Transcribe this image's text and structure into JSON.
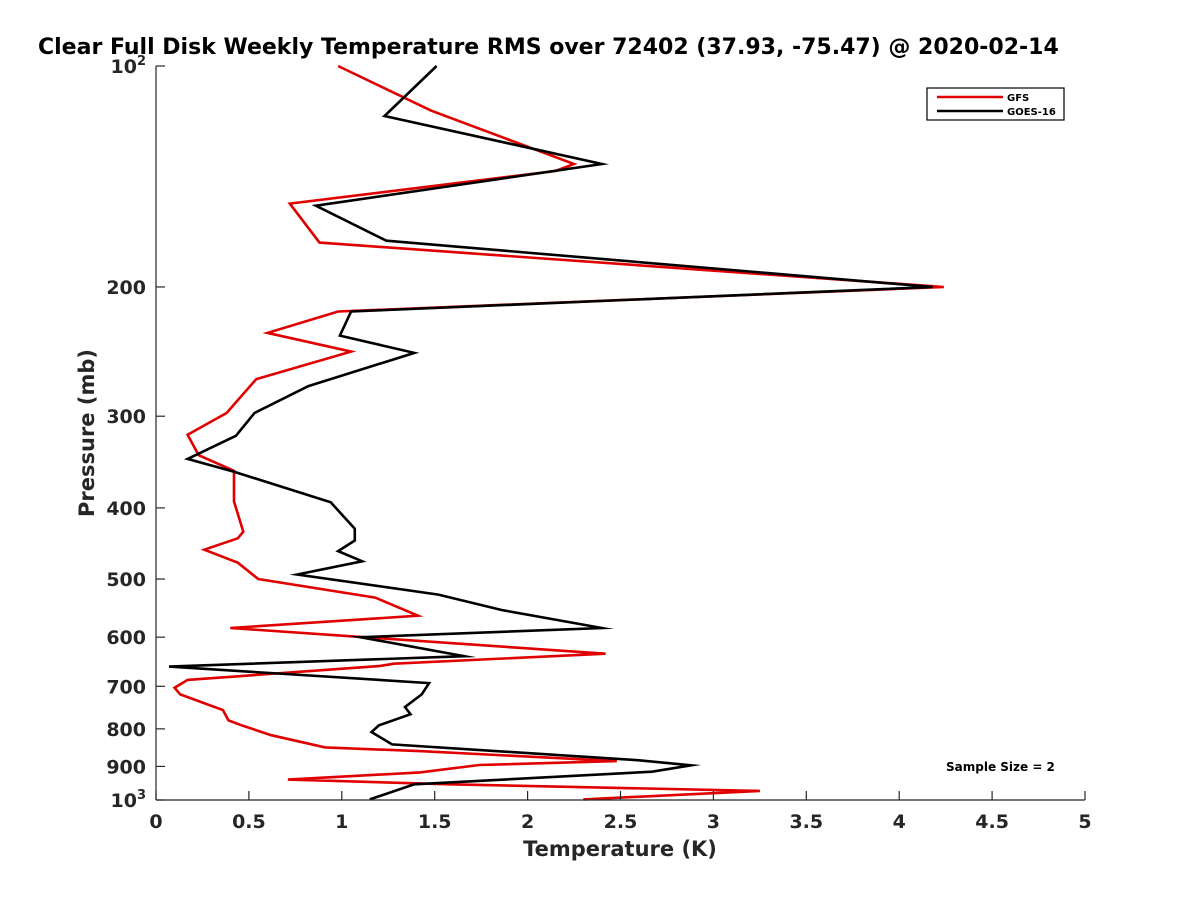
{
  "chart_data": {
    "type": "line",
    "title": "Clear Full Disk Weekly Temperature RMS over 72402 (37.93, -75.47) @ 2020-02-14",
    "xlabel": "Temperature (K)",
    "ylabel": "Pressure (mb)",
    "xlim": [
      0,
      5
    ],
    "ylim": [
      100,
      1000
    ],
    "yscale": "log",
    "y_reversed": true,
    "x_ticks": [
      "0",
      "0.5",
      "1",
      "1.5",
      "2",
      "2.5",
      "3",
      "3.5",
      "4",
      "4.5",
      "5"
    ],
    "x_tick_values": [
      0,
      0.5,
      1,
      1.5,
      2,
      2.5,
      3,
      3.5,
      4,
      4.5,
      5
    ],
    "y_ticks": [
      {
        "value": 100,
        "base": "10",
        "exp": "2"
      },
      {
        "value": 200,
        "label": "200"
      },
      {
        "value": 300,
        "label": "300"
      },
      {
        "value": 400,
        "label": "400"
      },
      {
        "value": 500,
        "label": "500"
      },
      {
        "value": 600,
        "label": "600"
      },
      {
        "value": 700,
        "label": "700"
      },
      {
        "value": 800,
        "label": "800"
      },
      {
        "value": 900,
        "label": "900"
      },
      {
        "value": 1000,
        "base": "10",
        "exp": "3"
      }
    ],
    "legend_position": "top-right",
    "annotation": "Sample Size = 2",
    "series": [
      {
        "name": "GFS",
        "color": "#e00000",
        "points": [
          [
            0.98,
            100
          ],
          [
            1.48,
            115
          ],
          [
            2.25,
            136
          ],
          [
            2.15,
            139
          ],
          [
            0.72,
            154
          ],
          [
            0.88,
            174
          ],
          [
            4.24,
            200
          ],
          [
            0.98,
            216
          ],
          [
            0.6,
            231
          ],
          [
            1.05,
            245
          ],
          [
            0.54,
            267
          ],
          [
            0.38,
            297
          ],
          [
            0.17,
            318
          ],
          [
            0.23,
            339
          ],
          [
            0.42,
            356
          ],
          [
            0.42,
            392
          ],
          [
            0.47,
            431
          ],
          [
            0.44,
            440
          ],
          [
            0.26,
            456
          ],
          [
            0.44,
            475
          ],
          [
            0.55,
            500
          ],
          [
            1.18,
            530
          ],
          [
            1.41,
            561
          ],
          [
            0.4,
            583
          ],
          [
            2.42,
            632
          ],
          [
            1.28,
            652
          ],
          [
            1.2,
            657
          ],
          [
            0.17,
            686
          ],
          [
            0.1,
            703
          ],
          [
            0.13,
            718
          ],
          [
            0.36,
            754
          ],
          [
            0.39,
            779
          ],
          [
            0.46,
            791
          ],
          [
            0.62,
            816
          ],
          [
            0.91,
            848
          ],
          [
            1.43,
            858
          ],
          [
            2.48,
            885
          ],
          [
            1.74,
            896
          ],
          [
            1.42,
            917
          ],
          [
            0.71,
            938
          ],
          [
            1.58,
            952
          ],
          [
            3.25,
            972
          ],
          [
            2.3,
            998
          ]
        ]
      },
      {
        "name": "GOES-16",
        "color": "#000000",
        "points": [
          [
            1.51,
            100
          ],
          [
            1.23,
            117
          ],
          [
            2.4,
            136
          ],
          [
            0.86,
            155
          ],
          [
            1.24,
            173
          ],
          [
            4.18,
            200
          ],
          [
            1.05,
            216
          ],
          [
            0.99,
            233
          ],
          [
            1.39,
            246
          ],
          [
            0.82,
            273
          ],
          [
            0.53,
            297
          ],
          [
            0.43,
            319
          ],
          [
            0.17,
            343
          ],
          [
            0.42,
            357
          ],
          [
            0.94,
            393
          ],
          [
            1.07,
            427
          ],
          [
            1.07,
            443
          ],
          [
            0.98,
            458
          ],
          [
            1.11,
            473
          ],
          [
            0.76,
            493
          ],
          [
            1.52,
            525
          ],
          [
            1.86,
            551
          ],
          [
            2.4,
            583
          ],
          [
            1.1,
            600
          ],
          [
            1.66,
            637
          ],
          [
            0.07,
            658
          ],
          [
            1.47,
            693
          ],
          [
            1.43,
            718
          ],
          [
            1.34,
            747
          ],
          [
            1.37,
            764
          ],
          [
            1.2,
            791
          ],
          [
            1.16,
            808
          ],
          [
            1.27,
            840
          ],
          [
            2.6,
            883
          ],
          [
            2.88,
            897
          ],
          [
            2.67,
            915
          ],
          [
            1.39,
            952
          ],
          [
            1.15,
            998
          ]
        ]
      }
    ]
  }
}
